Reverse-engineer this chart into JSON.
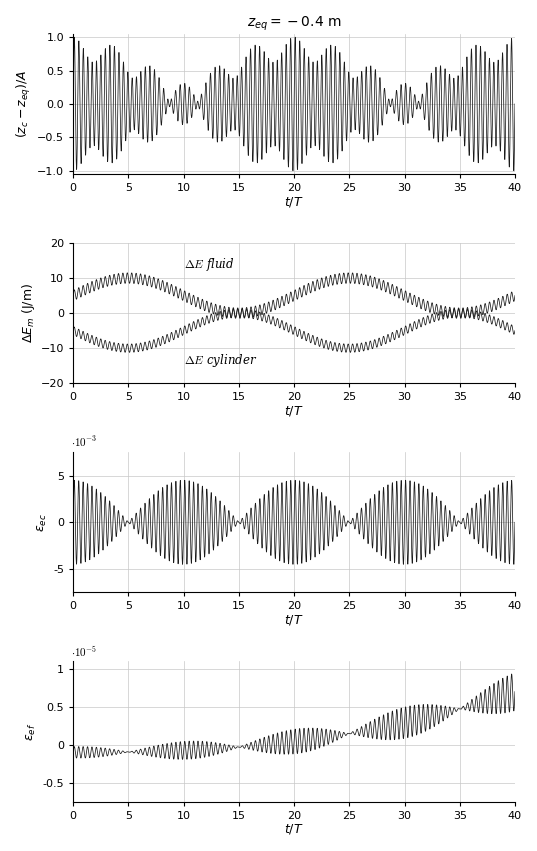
{
  "title": "$z_{eq} = -0.4$ m",
  "xlim": [
    0,
    40
  ],
  "subplot1": {
    "ylabel": "$(z_c - z_{eq})/A$",
    "xlabel": "$t/T$",
    "ylim": [
      -1.05,
      1.05
    ],
    "yticks": [
      -1,
      -0.5,
      0,
      0.5,
      1
    ],
    "xticks": [
      0,
      5,
      10,
      15,
      20,
      25,
      30,
      35,
      40
    ]
  },
  "subplot2": {
    "ylabel": "$\\Delta E_m$ (J/m)",
    "xlabel": "$t/T$",
    "ylim": [
      -20,
      20
    ],
    "yticks": [
      -20,
      -10,
      0,
      10,
      20
    ],
    "xticks": [
      0,
      5,
      10,
      15,
      20,
      25,
      30,
      35,
      40
    ],
    "label_fluid": "$\\Delta E$ fluid",
    "label_cylinder": "$\\Delta E$ cylinder"
  },
  "subplot3": {
    "ylabel": "$\\epsilon_{ec}$",
    "xlabel": "$t/T$",
    "ylim": [
      -0.0075,
      0.0075
    ],
    "yticks": [
      -0.005,
      0,
      0.005
    ],
    "yticklabels": [
      "-5",
      "0",
      "5"
    ],
    "scale_label": "$\\cdot10^{-3}$",
    "xticks": [
      0,
      5,
      10,
      15,
      20,
      25,
      30,
      35,
      40
    ]
  },
  "subplot4": {
    "ylabel": "$\\epsilon_{ef}$",
    "xlabel": "$t/T$",
    "ylim": [
      -7.5e-06,
      1.1e-05
    ],
    "yticks": [
      -5e-06,
      0,
      5e-06,
      1e-05
    ],
    "yticklabels": [
      "-0.5",
      "0",
      "0.5",
      "1"
    ],
    "scale_label": "$\\cdot10^{-5}$",
    "xticks": [
      0,
      5,
      10,
      15,
      20,
      25,
      30,
      35,
      40
    ]
  },
  "line_color": "#1a1a1a",
  "grid_color": "#c8c8c8",
  "bg_color": "#ffffff"
}
